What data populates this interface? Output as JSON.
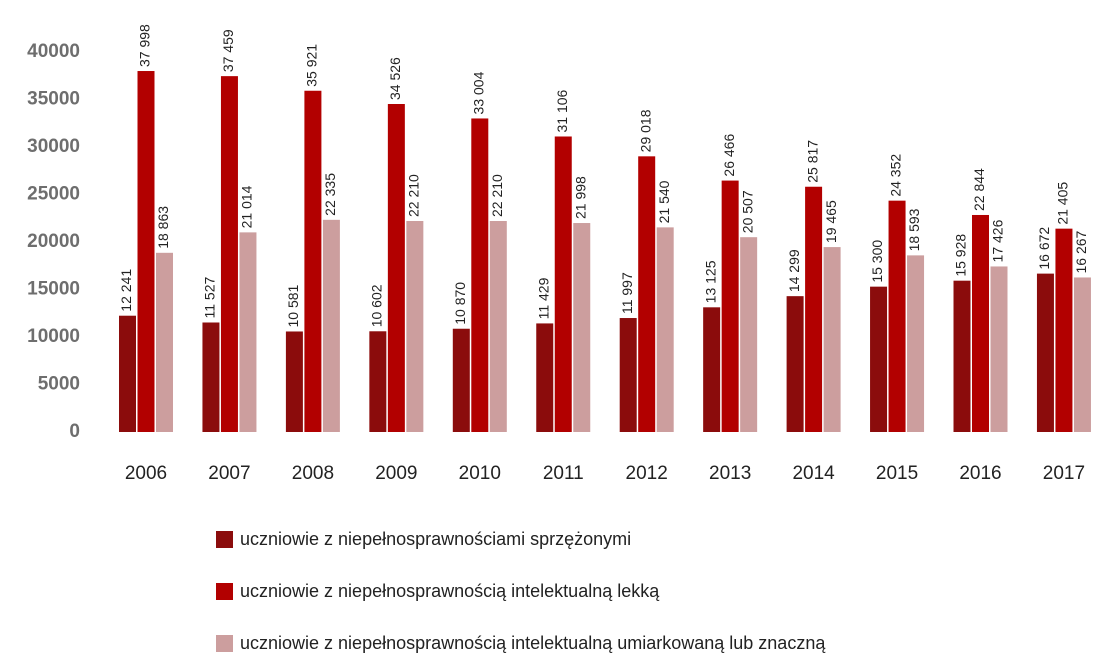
{
  "chart_data": {
    "type": "bar",
    "categories": [
      "2006",
      "2007",
      "2008",
      "2009",
      "2010",
      "2011",
      "2012",
      "2013",
      "2014",
      "2015",
      "2016",
      "2017"
    ],
    "series": [
      {
        "name": "uczniowie z niepełnosprawnościami sprzężonymi",
        "color": "#8b0c0c",
        "values": [
          12241,
          11527,
          10581,
          10602,
          10870,
          11429,
          11997,
          13125,
          14299,
          15300,
          15928,
          16672
        ],
        "value_labels": [
          "12 241",
          "11 527",
          "10 581",
          "10 602",
          "10 870",
          "11 429",
          "11 997",
          "13 125",
          "14 299",
          "15 300",
          "15 928",
          "16 672"
        ]
      },
      {
        "name": "uczniowie z niepełnosprawnością intelektualną lekką",
        "color": "#b20000",
        "values": [
          37998,
          37459,
          35921,
          34526,
          33004,
          31106,
          29018,
          26466,
          25817,
          24352,
          22844,
          21405
        ],
        "value_labels": [
          "37 998",
          "37 459",
          "35 921",
          "34 526",
          "33 004",
          "31 106",
          "29 018",
          "26 466",
          "25 817",
          "24 352",
          "22 844",
          "21 405"
        ]
      },
      {
        "name": "uczniowie z niepełnosprawnością intelektualną umiarkowaną lub znaczną",
        "color": "#cc9e9e",
        "values": [
          18863,
          21014,
          22335,
          22210,
          22210,
          21998,
          21540,
          20507,
          19465,
          18593,
          17426,
          16267
        ],
        "value_labels": [
          "18 863",
          "21 014",
          "22 335",
          "22 210",
          "22 210",
          "21 998",
          "21 540",
          "20 507",
          "19 465",
          "18 593",
          "17 426",
          "16 267"
        ]
      }
    ],
    "ylim": [
      0,
      40000
    ],
    "yticks": [
      0,
      5000,
      10000,
      15000,
      20000,
      25000,
      30000,
      35000,
      40000
    ],
    "grid": false
  }
}
